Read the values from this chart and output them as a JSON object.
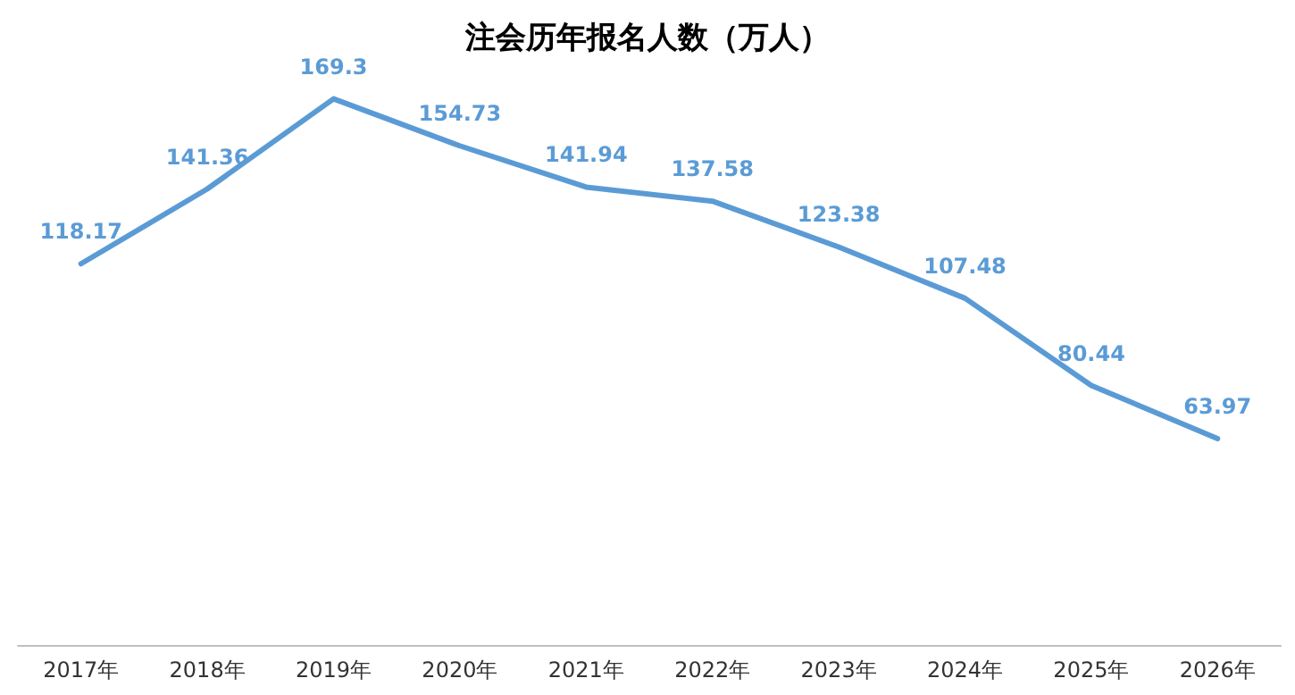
{
  "chart_data": {
    "type": "line",
    "title": "注会历年报名人数（万人）",
    "categories": [
      "2017年",
      "2018年",
      "2019年",
      "2020年",
      "2021年",
      "2022年",
      "2023年",
      "2024年",
      "2025年",
      "2026年"
    ],
    "values": [
      118.17,
      141.36,
      169.3,
      154.73,
      141.94,
      137.58,
      123.38,
      107.48,
      80.44,
      63.97
    ],
    "color": "#5b9bd5",
    "data_labels": true,
    "marker": "none",
    "grid": false,
    "line_style": "solid"
  }
}
